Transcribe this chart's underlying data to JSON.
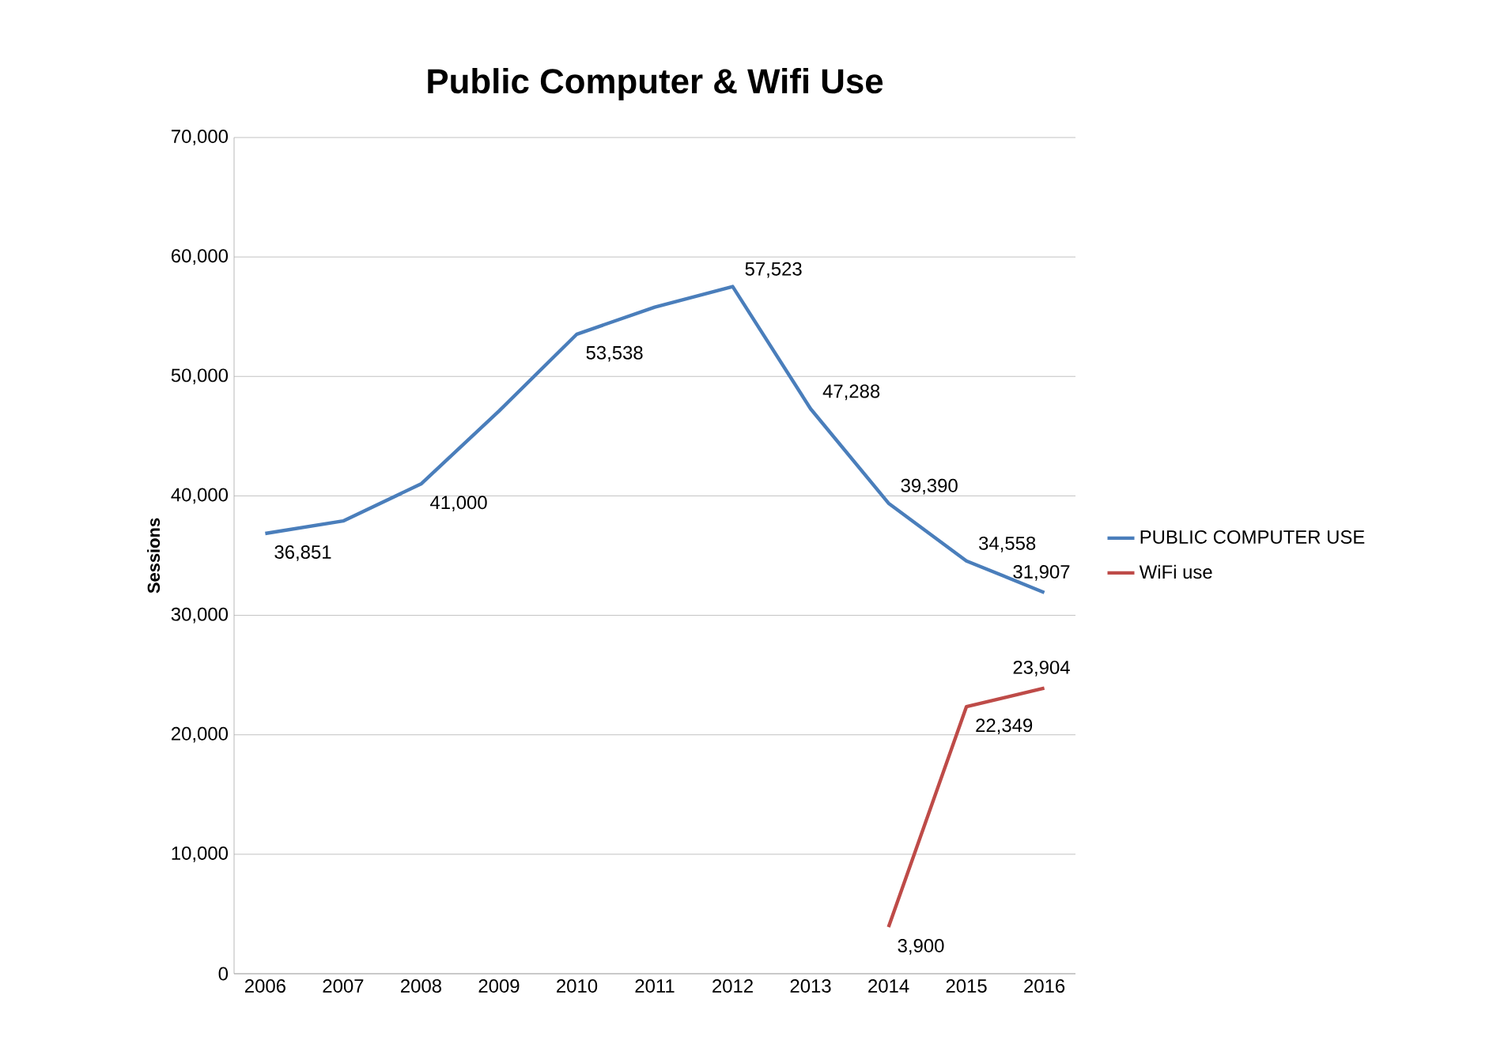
{
  "chart_data": {
    "type": "line",
    "title": "Public Computer & Wifi Use",
    "ylabel": "Sessions",
    "categories": [
      "2006",
      "2007",
      "2008",
      "2009",
      "2010",
      "2011",
      "2012",
      "2013",
      "2014",
      "2015",
      "2016"
    ],
    "series": [
      {
        "name": "PUBLIC COMPUTER USE",
        "color": "#4a7ebb",
        "values": [
          36851,
          37900,
          41000,
          47100,
          53538,
          55800,
          57523,
          47288,
          39390,
          34558,
          31907
        ],
        "value_labels": [
          "36,851",
          null,
          "41,000",
          null,
          "53,538",
          null,
          "57,523",
          "47,288",
          "39,390",
          "34,558",
          "31,907"
        ]
      },
      {
        "name": "WiFi use",
        "color": "#be4b48",
        "values": [
          null,
          null,
          null,
          null,
          null,
          null,
          null,
          null,
          3900,
          22349,
          23904
        ],
        "value_labels": [
          null,
          null,
          null,
          null,
          null,
          null,
          null,
          null,
          "3,900",
          "22,349",
          "23,904"
        ]
      }
    ],
    "ylim": [
      0,
      70000
    ],
    "yticks": [
      {
        "value": 0,
        "label": "0"
      },
      {
        "value": 10000,
        "label": "10,000"
      },
      {
        "value": 20000,
        "label": "20,000"
      },
      {
        "value": 30000,
        "label": "30,000"
      },
      {
        "value": 40000,
        "label": "40,000"
      },
      {
        "value": 50000,
        "label": "50,000"
      },
      {
        "value": 60000,
        "label": "60,000"
      },
      {
        "value": 70000,
        "label": "70,000"
      }
    ],
    "grid": "y",
    "legend": "right"
  }
}
